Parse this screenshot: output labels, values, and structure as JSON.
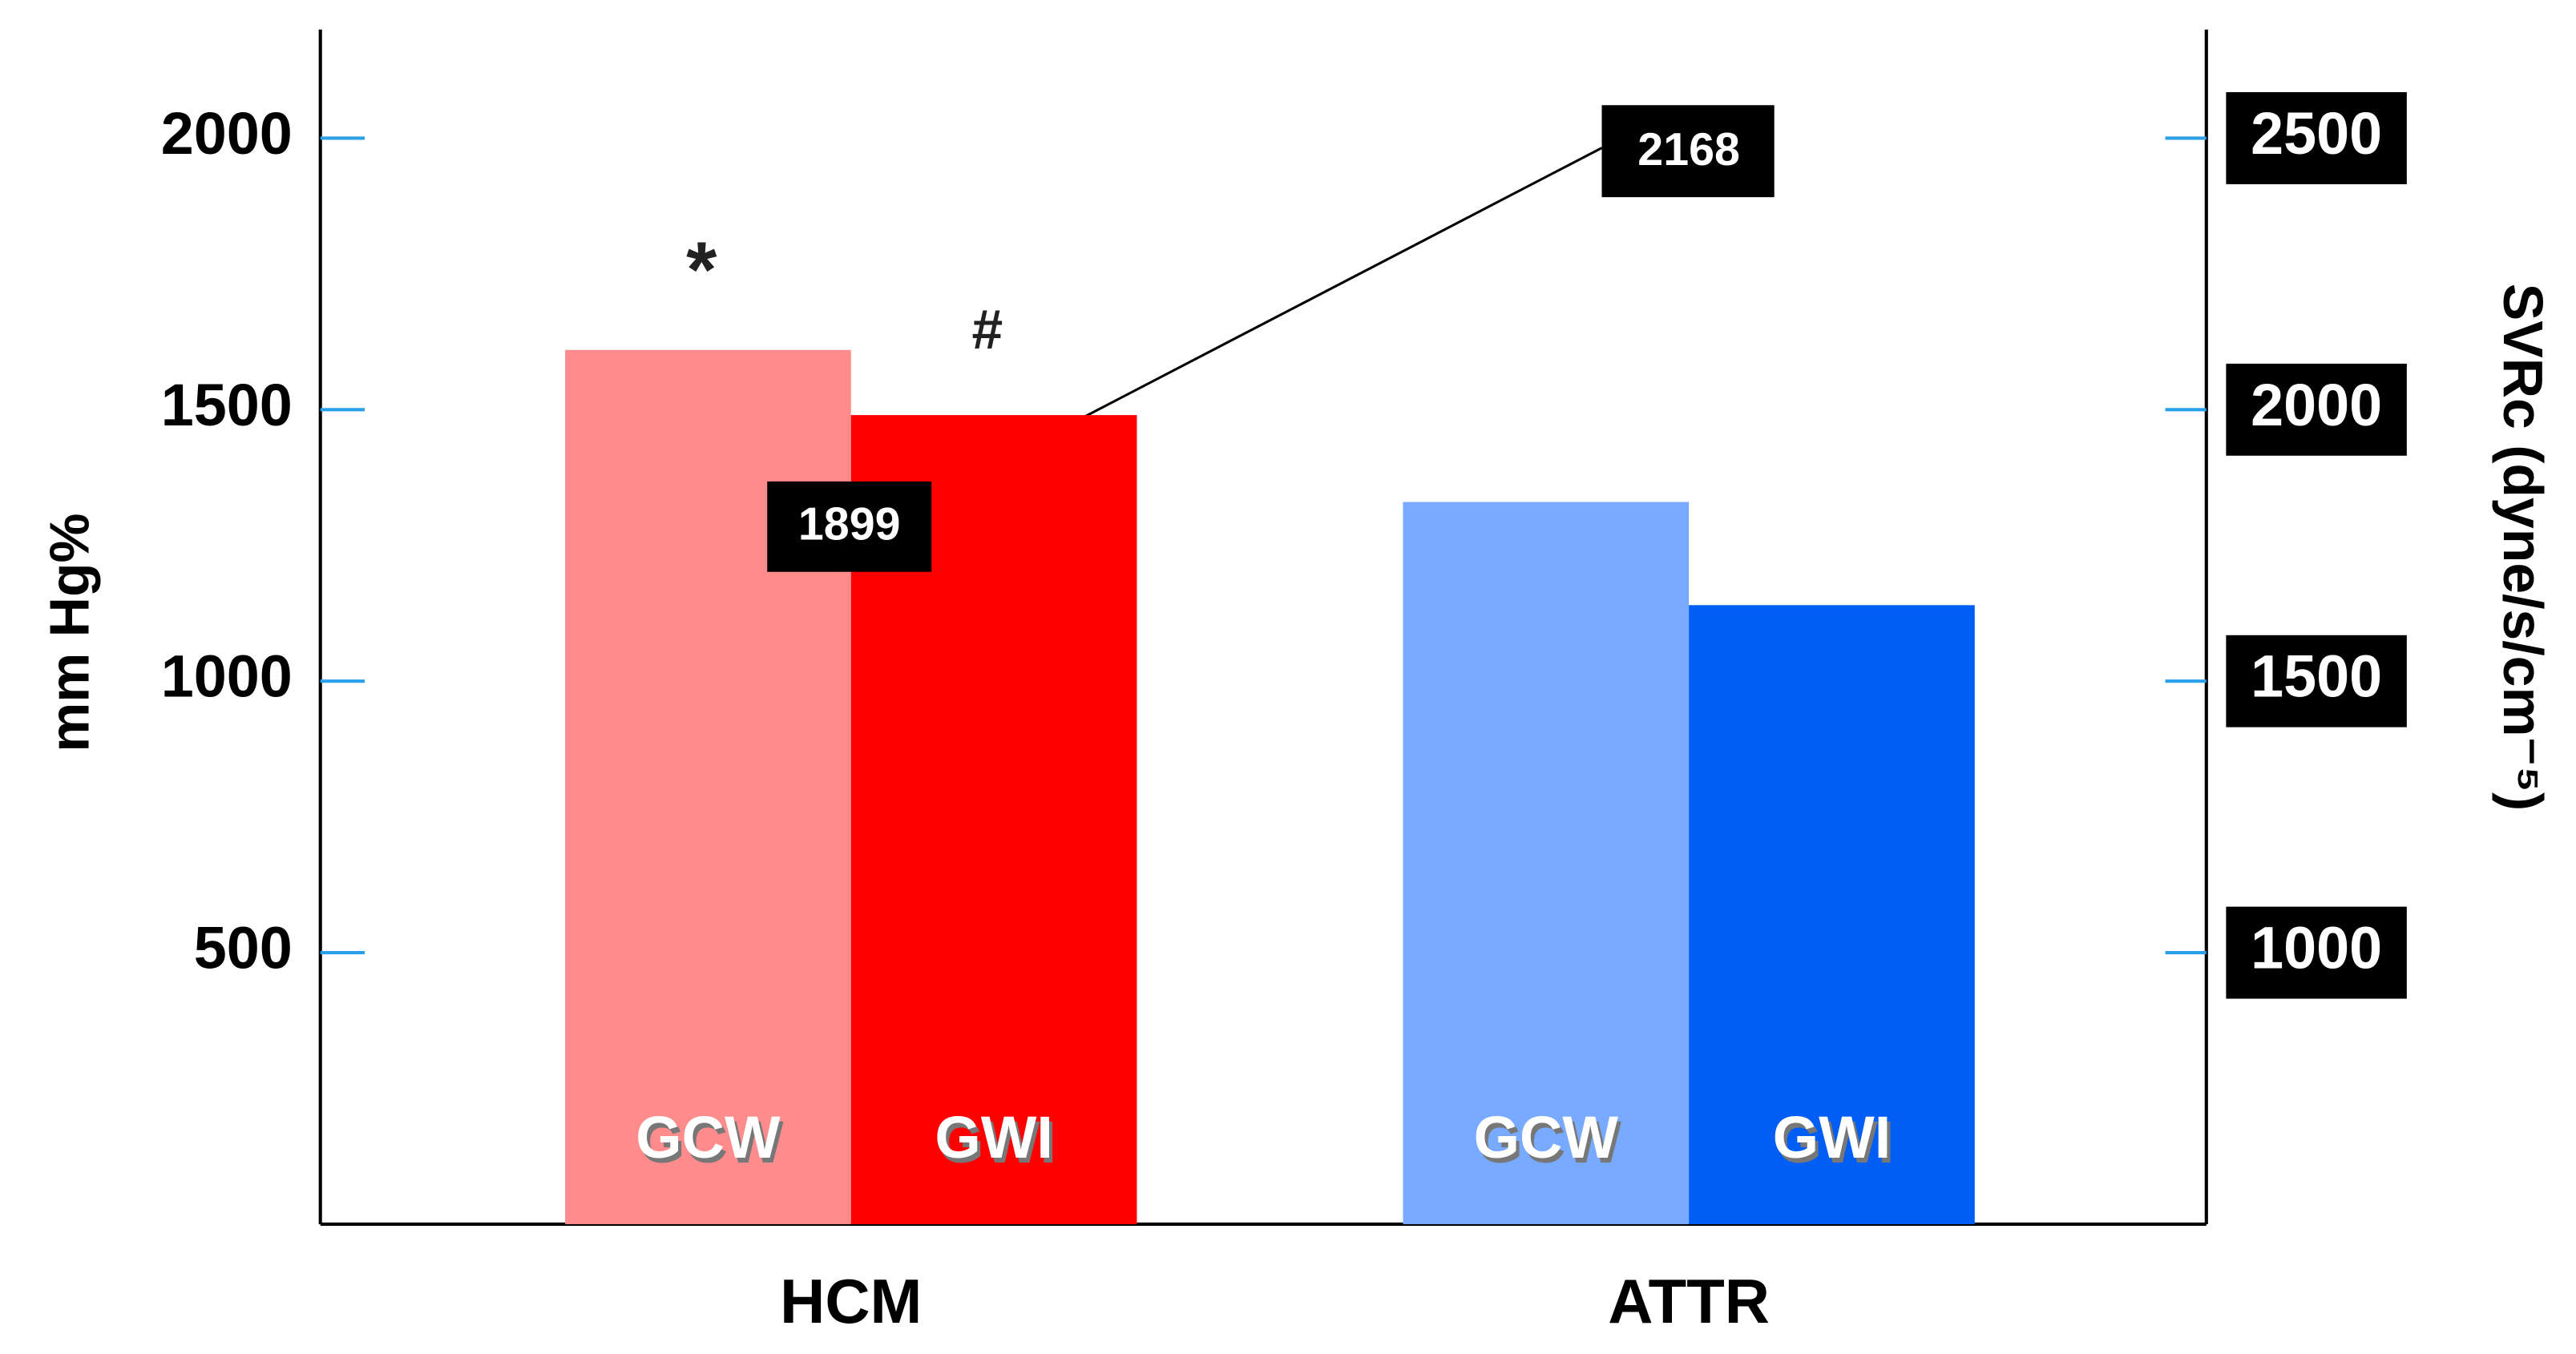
{
  "chart_data": {
    "type": "bar",
    "categories": [
      "HCM",
      "ATTR"
    ],
    "series": [
      {
        "name": "GCW",
        "colors": [
          "#ff8c8c",
          "#78aaff"
        ],
        "values": [
          1610,
          1330
        ]
      },
      {
        "name": "GWI",
        "colors": [
          "#ff0000",
          "#005ef5"
        ],
        "values": [
          1490,
          1140
        ]
      }
    ],
    "y_label": "mm Hg%",
    "y2_label": "SVRc (dyne/s/cm⁻⁵)",
    "ylim": [
      0,
      2200
    ],
    "yticks": [
      500,
      1000,
      1500,
      2000
    ],
    "y2lim": [
      500,
      2700
    ],
    "y2ticks": [
      1000,
      1500,
      2000,
      2500
    ],
    "annotations": [
      {
        "text": "*"
      },
      {
        "text": "#"
      },
      {
        "text": "1899"
      },
      {
        "text": "2168"
      }
    ]
  }
}
